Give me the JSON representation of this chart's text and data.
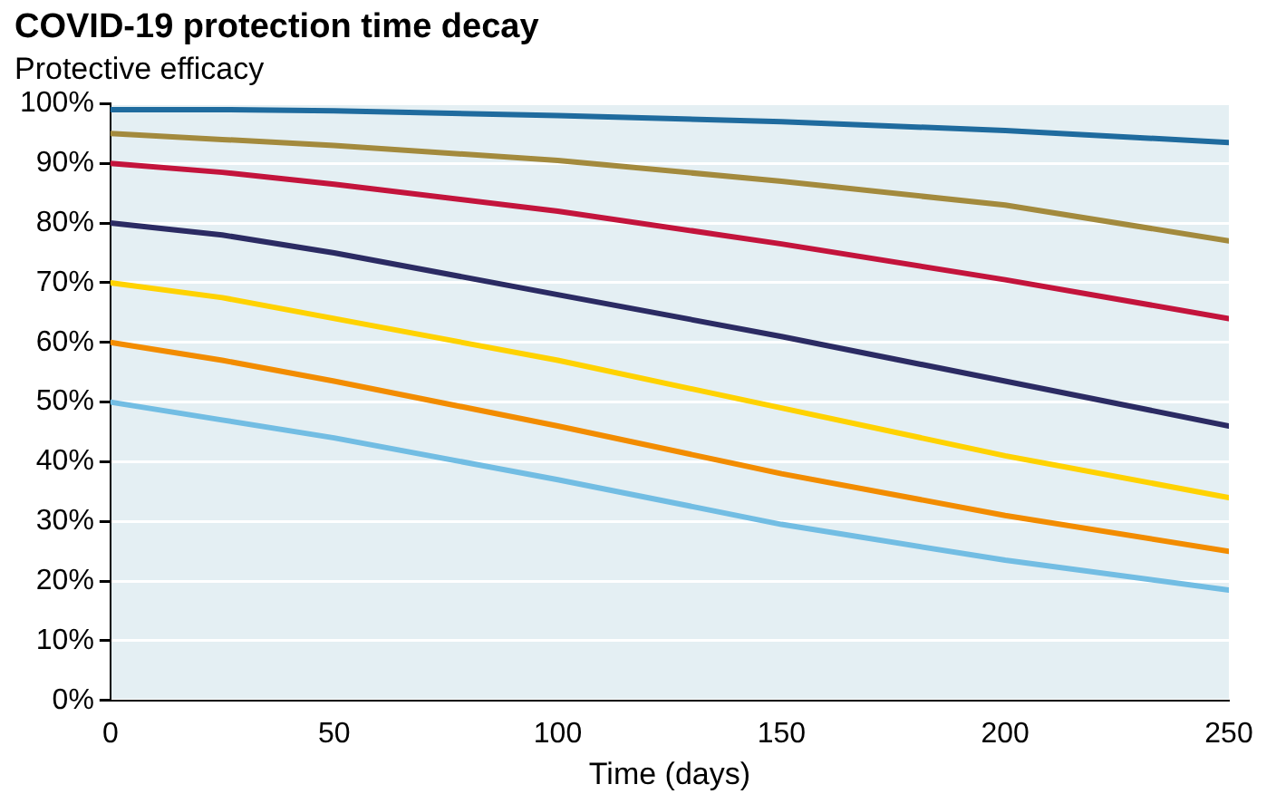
{
  "chart_data": {
    "type": "line",
    "title": "COVID-19 protection time decay",
    "subtitle": "Protective efficacy",
    "xlabel": "Time (days)",
    "x": [
      0,
      25,
      50,
      100,
      150,
      200,
      250
    ],
    "series": [
      {
        "color": "#1f6b9e",
        "values": [
          99,
          99,
          98.8,
          98,
          97,
          95.5,
          93.5
        ]
      },
      {
        "color": "#a38a3d",
        "values": [
          95,
          94,
          93,
          90.5,
          87,
          83,
          77
        ]
      },
      {
        "color": "#c3143c",
        "values": [
          90,
          88.5,
          86.5,
          82,
          76.5,
          70.5,
          64
        ]
      },
      {
        "color": "#2b2b63",
        "values": [
          80,
          78,
          75,
          68,
          61,
          53.5,
          46
        ]
      },
      {
        "color": "#ffd200",
        "values": [
          70,
          67.5,
          64,
          57,
          49,
          41,
          34
        ]
      },
      {
        "color": "#f28c00",
        "values": [
          60,
          57,
          53.5,
          46,
          38,
          31,
          25
        ]
      },
      {
        "color": "#72bde3",
        "values": [
          50,
          47,
          44,
          37,
          29.5,
          23.5,
          18.5
        ]
      }
    ],
    "xlim": [
      0,
      250
    ],
    "xticks": [
      0,
      50,
      100,
      150,
      200,
      250
    ],
    "ylim": [
      0,
      100
    ],
    "yticks": [
      {
        "value": 0,
        "label": "0%"
      },
      {
        "value": 10,
        "label": "10%"
      },
      {
        "value": 20,
        "label": "20%"
      },
      {
        "value": 30,
        "label": "30%"
      },
      {
        "value": 40,
        "label": "40%"
      },
      {
        "value": 50,
        "label": "50%"
      },
      {
        "value": 60,
        "label": "60%"
      },
      {
        "value": 70,
        "label": "70%"
      },
      {
        "value": 80,
        "label": "80%"
      },
      {
        "value": 90,
        "label": "90%"
      },
      {
        "value": 100,
        "label": "100%"
      }
    ],
    "grid": "y",
    "legend": false,
    "marker": "none",
    "line_style": "solid"
  }
}
